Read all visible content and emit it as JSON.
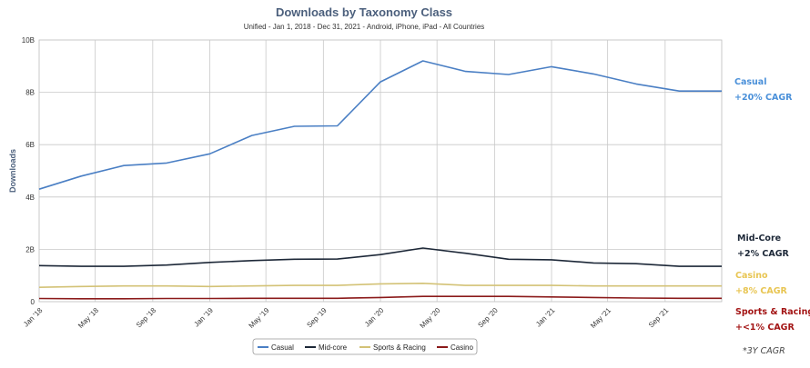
{
  "chart_data": {
    "type": "line",
    "title": "Downloads by Taxonomy Class",
    "subtitle": "Unified - Jan 1, 2018 - Dec 31, 2021 - Android, iPhone, iPad - All Countries",
    "ylabel": "Downloads",
    "xlabel": "",
    "ylim": [
      0,
      10
    ],
    "y_ticks": [
      "0",
      "2B",
      "4B",
      "6B",
      "8B",
      "10B"
    ],
    "x_range": [
      "2018-01-01",
      "2021-12-31"
    ],
    "x_tick_labels": [
      {
        "date": "2018-01-01",
        "label": "Jan '18"
      },
      {
        "date": "2018-05-01",
        "label": "May '18"
      },
      {
        "date": "2018-09-01",
        "label": "Sep '18"
      },
      {
        "date": "2019-01-01",
        "label": "Jan '19"
      },
      {
        "date": "2019-05-01",
        "label": "May '19"
      },
      {
        "date": "2019-09-01",
        "label": "Sep '19"
      },
      {
        "date": "2020-01-01",
        "label": "Jan '20"
      },
      {
        "date": "2020-05-01",
        "label": "May '20"
      },
      {
        "date": "2020-09-01",
        "label": "Sep '20"
      },
      {
        "date": "2021-01-01",
        "label": "Jan '21"
      },
      {
        "date": "2021-05-01",
        "label": "May '21"
      },
      {
        "date": "2021-09-01",
        "label": "Sep '21"
      }
    ],
    "grid": true,
    "legend_position": "bottom-center",
    "x": [
      "2018-01-01",
      "2018-04-01",
      "2018-07-01",
      "2018-10-01",
      "2019-01-01",
      "2019-04-01",
      "2019-07-01",
      "2019-10-01",
      "2020-01-01",
      "2020-04-01",
      "2020-07-01",
      "2020-10-01",
      "2021-01-01",
      "2021-04-01",
      "2021-07-01",
      "2021-10-01",
      "2021-12-31"
    ],
    "series": [
      {
        "name": "Casual",
        "color": "#4a7fc4",
        "values": [
          4.3,
          4.8,
          5.2,
          5.3,
          5.65,
          6.35,
          6.7,
          6.72,
          8.4,
          9.2,
          8.8,
          8.68,
          8.98,
          8.7,
          8.32,
          8.05,
          8.05
        ]
      },
      {
        "name": "Mid-core",
        "color": "#1d2838",
        "values": [
          1.38,
          1.35,
          1.35,
          1.4,
          1.5,
          1.57,
          1.62,
          1.63,
          1.8,
          2.05,
          1.85,
          1.62,
          1.6,
          1.48,
          1.45,
          1.35,
          1.35
        ]
      },
      {
        "name": "Sports & Racing",
        "color": "#d3c276",
        "values": [
          0.55,
          0.58,
          0.6,
          0.6,
          0.58,
          0.6,
          0.62,
          0.62,
          0.68,
          0.7,
          0.62,
          0.62,
          0.62,
          0.6,
          0.6,
          0.6,
          0.6
        ]
      },
      {
        "name": "Casino",
        "color": "#8b1a1a",
        "values": [
          0.12,
          0.11,
          0.11,
          0.12,
          0.12,
          0.13,
          0.13,
          0.13,
          0.16,
          0.2,
          0.2,
          0.2,
          0.18,
          0.16,
          0.14,
          0.13,
          0.13
        ]
      }
    ],
    "annotations": [
      {
        "label": "Casual",
        "cagr": "+20% CAGR",
        "color": "#4a90d9"
      },
      {
        "label": "Mid-Core",
        "cagr": "+2% CAGR",
        "color": "#1d2838"
      },
      {
        "label": "Casino",
        "cagr": "+8% CAGR",
        "color": "#e8c552"
      },
      {
        "label": "Sports & Racing",
        "cagr": "+<1% CAGR",
        "color": "#a31515"
      }
    ],
    "footnote": "*3Y CAGR"
  }
}
